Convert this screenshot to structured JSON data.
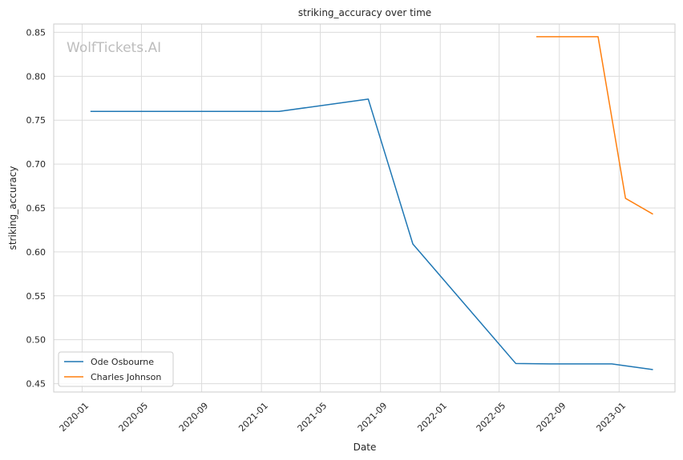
{
  "chart_data": {
    "type": "line",
    "title": "striking_accuracy over time",
    "xlabel": "Date",
    "ylabel": "striking_accuracy",
    "watermark": "WolfTickets.AI",
    "x_ticks": [
      "2020-01",
      "2020-05",
      "2020-09",
      "2021-01",
      "2021-05",
      "2021-09",
      "2022-01",
      "2022-05",
      "2022-09",
      "2023-01"
    ],
    "y_ticks": [
      "0.45",
      "0.50",
      "0.55",
      "0.60",
      "0.65",
      "0.70",
      "0.75",
      "0.80",
      "0.85"
    ],
    "xlim": [
      "2019-11-04",
      "2023-04-25"
    ],
    "ylim": [
      0.4405,
      0.8595
    ],
    "grid": true,
    "legend_position": "lower-left",
    "series": [
      {
        "name": "Ode Osbourne",
        "color": "#1f77b4",
        "points": [
          {
            "x": "2020-01-18",
            "y": 0.76
          },
          {
            "x": "2021-02-06",
            "y": 0.76
          },
          {
            "x": "2021-08-07",
            "y": 0.774
          },
          {
            "x": "2021-11-06",
            "y": 0.609
          },
          {
            "x": "2022-06-04",
            "y": 0.473
          },
          {
            "x": "2022-08-13",
            "y": 0.4725
          },
          {
            "x": "2022-12-17",
            "y": 0.4725
          },
          {
            "x": "2023-03-11",
            "y": 0.466
          }
        ]
      },
      {
        "name": "Charles Johnson",
        "color": "#ff7f0e",
        "points": [
          {
            "x": "2022-07-16",
            "y": 0.845
          },
          {
            "x": "2022-11-19",
            "y": 0.845
          },
          {
            "x": "2023-01-14",
            "y": 0.661
          },
          {
            "x": "2023-03-11",
            "y": 0.643
          }
        ]
      }
    ]
  }
}
